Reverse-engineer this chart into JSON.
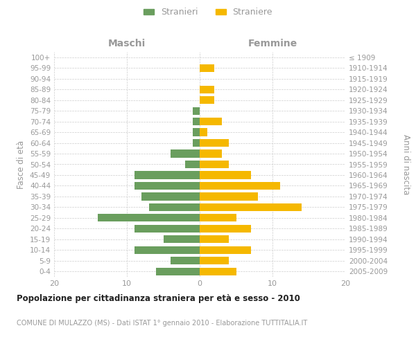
{
  "age_groups": [
    "100+",
    "95-99",
    "90-94",
    "85-89",
    "80-84",
    "75-79",
    "70-74",
    "65-69",
    "60-64",
    "55-59",
    "50-54",
    "45-49",
    "40-44",
    "35-39",
    "30-34",
    "25-29",
    "20-24",
    "15-19",
    "10-14",
    "5-9",
    "0-4"
  ],
  "birth_years": [
    "≤ 1909",
    "1910-1914",
    "1915-1919",
    "1920-1924",
    "1925-1929",
    "1930-1934",
    "1935-1939",
    "1940-1944",
    "1945-1949",
    "1950-1954",
    "1955-1959",
    "1960-1964",
    "1965-1969",
    "1970-1974",
    "1975-1979",
    "1980-1984",
    "1985-1989",
    "1990-1994",
    "1995-1999",
    "2000-2004",
    "2005-2009"
  ],
  "maschi": [
    0,
    0,
    0,
    0,
    0,
    1,
    1,
    1,
    1,
    4,
    2,
    9,
    9,
    8,
    7,
    14,
    9,
    5,
    9,
    4,
    6
  ],
  "femmine": [
    0,
    2,
    0,
    2,
    2,
    0,
    3,
    1,
    4,
    3,
    4,
    7,
    11,
    8,
    14,
    5,
    7,
    4,
    7,
    4,
    5
  ],
  "color_maschi": "#6a9e5e",
  "color_femmine": "#f5b800",
  "background_color": "#ffffff",
  "grid_color": "#cccccc",
  "title": "Popolazione per cittadinanza straniera per età e sesso - 2010",
  "subtitle": "COMUNE DI MULAZZO (MS) - Dati ISTAT 1° gennaio 2010 - Elaborazione TUTTITALIA.IT",
  "ylabel_left": "Fasce di età",
  "ylabel_right": "Anni di nascita",
  "legend_maschi": "Stranieri",
  "legend_femmine": "Straniere",
  "header_left": "Maschi",
  "header_right": "Femmine",
  "xlim": 20,
  "bar_height": 0.72,
  "label_color": "#999999",
  "title_color": "#222222",
  "grid_color_x": "#cccccc"
}
